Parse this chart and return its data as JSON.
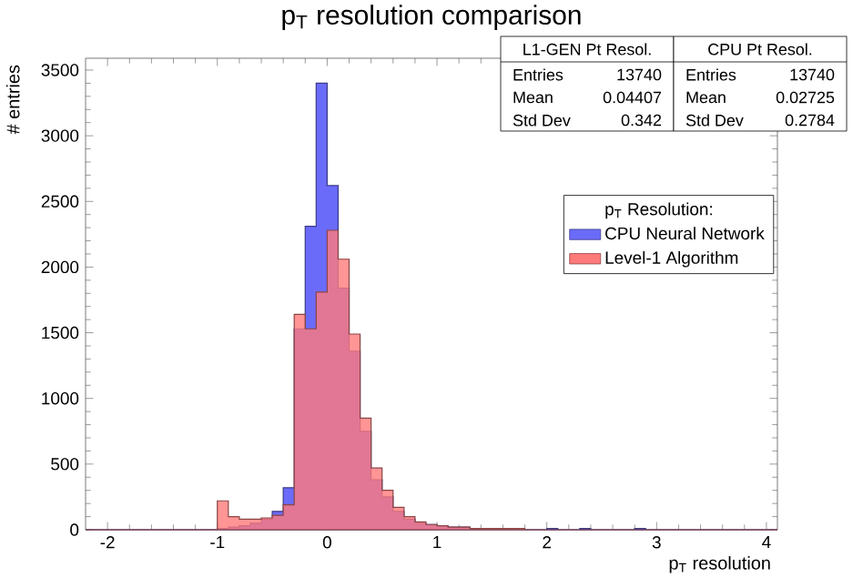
{
  "chart_data": {
    "type": "histogram",
    "title": "p$_{T}$ resolution comparison",
    "xlabel": "p$_{T}$ resolution",
    "ylabel": "# entries",
    "legend_title": "p$_{T}$ Resolution:",
    "bins": [
      -2.2,
      -2.1,
      -2.0,
      -1.9,
      -1.8,
      -1.7,
      -1.6,
      -1.5,
      -1.4,
      -1.3,
      -1.2,
      -1.1,
      -1.0,
      -0.9,
      -0.8,
      -0.7,
      -0.6,
      -0.5,
      -0.4,
      -0.3,
      -0.2,
      -0.1,
      0.0,
      0.1,
      0.2,
      0.3,
      0.4,
      0.5,
      0.6,
      0.7,
      0.8,
      0.9,
      1.0,
      1.1,
      1.2,
      1.3,
      1.4,
      1.5,
      1.6,
      1.7,
      1.8,
      1.9,
      2.0,
      2.1,
      2.2,
      2.3,
      2.4,
      2.5,
      2.6,
      2.7,
      2.8,
      2.9,
      3.0,
      3.1,
      3.2,
      3.3,
      3.4,
      3.5,
      3.6,
      3.7,
      3.8,
      3.9,
      4.0,
      4.1
    ],
    "series": [
      {
        "name": "CPU Neural Network",
        "color": "#6b6bfa",
        "values": [
          0,
          0,
          0,
          0,
          0,
          0,
          0,
          0,
          0,
          0,
          0,
          0,
          10,
          20,
          30,
          50,
          80,
          140,
          320,
          1530,
          2310,
          3400,
          2620,
          1840,
          1360,
          750,
          380,
          250,
          140,
          80,
          50,
          40,
          30,
          20,
          20,
          10,
          10,
          10,
          10,
          0,
          0,
          0,
          10,
          0,
          0,
          10,
          0,
          0,
          0,
          0,
          10,
          0,
          0,
          0,
          0,
          0,
          0,
          0,
          0,
          0,
          0,
          0,
          0
        ]
      },
      {
        "name": "Level-1 Algorithm",
        "color": "#ff7b7b",
        "values": [
          0,
          0,
          0,
          0,
          0,
          0,
          0,
          0,
          0,
          0,
          0,
          0,
          220,
          100,
          80,
          80,
          90,
          110,
          190,
          1640,
          1530,
          1810,
          2280,
          2060,
          1490,
          850,
          470,
          300,
          170,
          100,
          60,
          40,
          30,
          20,
          20,
          10,
          10,
          10,
          10,
          10,
          0,
          0,
          0,
          0,
          0,
          0,
          0,
          0,
          0,
          0,
          0,
          0,
          0,
          0,
          0,
          0,
          0,
          0,
          0,
          0,
          0,
          0,
          0
        ]
      }
    ],
    "xlim": [
      -2.2,
      4.1
    ],
    "ylim": [
      0,
      3590
    ],
    "xticks": [
      -2,
      -1,
      0,
      1,
      2,
      3,
      4
    ],
    "yticks": [
      0,
      500,
      1000,
      1500,
      2000,
      2500,
      3000,
      3500
    ],
    "grid": false,
    "legend": "right",
    "annotations": [
      "L1-GEN Pt Resol.",
      "Entries",
      "13740",
      "Mean",
      "0.04407",
      "Std Dev",
      "0.342",
      "CPU Pt Resol.",
      "Entries",
      "13740",
      "Mean",
      "0.02725",
      "Std Dev",
      "0.2784"
    ]
  }
}
